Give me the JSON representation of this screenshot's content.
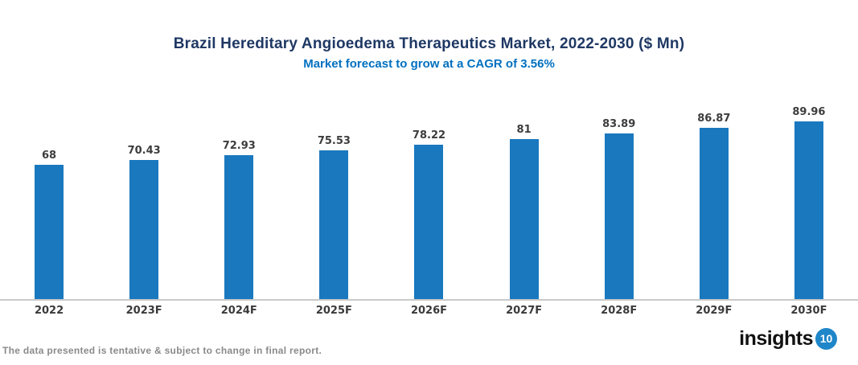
{
  "chart_data": {
    "type": "bar",
    "title": "Brazil Hereditary Angioedema Therapeutics Market, 2022-2030 ($ Mn)",
    "subtitle": "Market forecast to grow at a CAGR of 3.56%",
    "categories": [
      "2022",
      "2023F",
      "2024F",
      "2025F",
      "2026F",
      "2027F",
      "2028F",
      "2029F",
      "2030F"
    ],
    "values": [
      68,
      70.43,
      72.93,
      75.53,
      78.22,
      81,
      83.89,
      86.87,
      89.96
    ],
    "xlabel": "",
    "ylabel": "",
    "y_axis_shown": false,
    "data_labels_shown": true,
    "grid": false,
    "legend": false,
    "bar_color": "#1A78BE"
  },
  "footer": {
    "note": "The data presented is tentative & subject to change in final report."
  },
  "logo": {
    "text": "insights",
    "badge": "10"
  },
  "colors": {
    "background": "#FFFFFF",
    "title": "#1F3864",
    "subtitle": "#0070C0",
    "bar": "#1A78BE",
    "data_label": "#3D3D3D",
    "axis_label": "#3A3A3A",
    "axis_line": "#C9C9C9",
    "footer_text": "#8A8A8A",
    "logo_text": "#111111",
    "logo_badge": "#1F86C9"
  }
}
